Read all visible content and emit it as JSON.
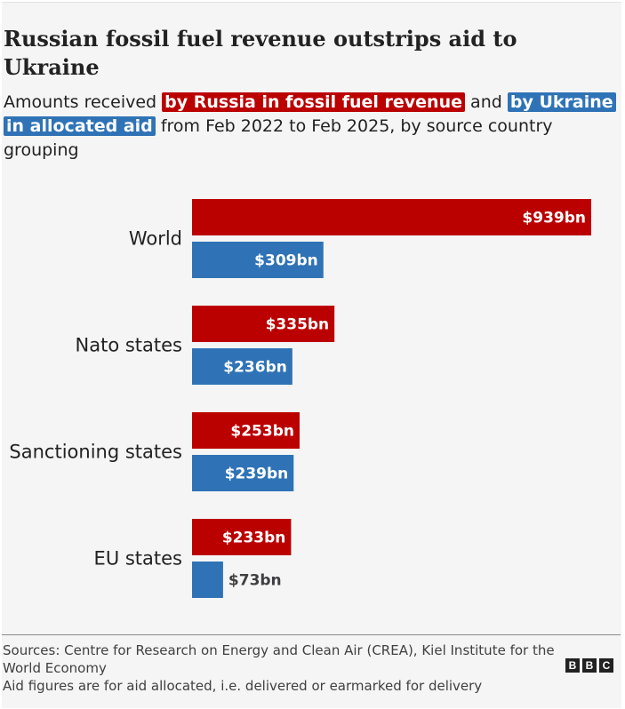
{
  "title": "Russian fossil fuel revenue outstrips aid to Ukraine",
  "subtitle": {
    "prefix": "Amounts received",
    "highlight_russia": "by Russia in fossil fuel revenue",
    "connector": "and",
    "highlight_ukraine": "by Ukraine in allocated aid",
    "suffix": "from Feb 2022 to Feb 2025, by source country grouping"
  },
  "colors": {
    "russia": "#bb0000",
    "ukraine": "#2f73b6",
    "value_text_inside": "#ffffff",
    "value_text_outside": "#3f3f42"
  },
  "chart_data": {
    "type": "bar",
    "orientation": "horizontal",
    "categories": [
      "World",
      "Nato states",
      "Sanctioning states",
      "EU states"
    ],
    "series": [
      {
        "name": "by Russia in fossil fuel revenue",
        "values": [
          939,
          335,
          253,
          233
        ],
        "labels": [
          "$939bn",
          "$335bn",
          "$253bn",
          "$233bn"
        ]
      },
      {
        "name": "by Ukraine in allocated aid",
        "values": [
          309,
          236,
          239,
          73
        ],
        "labels": [
          "$309bn",
          "$236bn",
          "$239bn",
          "$73bn"
        ]
      }
    ],
    "xlim": [
      0,
      939
    ],
    "grid": false,
    "legend": "inline in subtitle"
  },
  "footer": {
    "sources": "Sources: Centre for Research on Energy and Clean Air (CREA), Kiel Institute for the World Economy",
    "note": "Aid figures are for aid allocated, i.e. delivered or earmarked for delivery",
    "logo": [
      "B",
      "B",
      "C"
    ]
  }
}
